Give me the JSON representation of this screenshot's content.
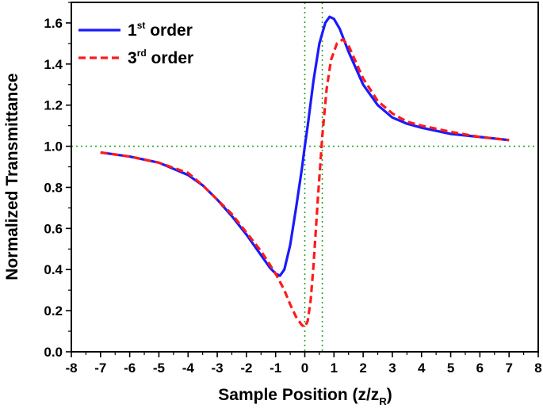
{
  "chart_data": {
    "type": "line",
    "title": "",
    "xlabel": "Sample Position (z/z",
    "xlabel_sub": "R",
    "xlabel_close": ")",
    "ylabel": "Normalized Transmittance",
    "xlim": [
      -8,
      8
    ],
    "ylim": [
      0.0,
      1.7
    ],
    "x_ticks": [
      "-8",
      "-7",
      "-6",
      "-5",
      "-4",
      "-3",
      "-2",
      "-1",
      "0",
      "1",
      "2",
      "3",
      "4",
      "5",
      "6",
      "7",
      "8"
    ],
    "y_ticks": [
      "0.0",
      "0.2",
      "0.4",
      "0.6",
      "0.8",
      "1.0",
      "1.2",
      "1.4",
      "1.6"
    ],
    "grid": false,
    "legend_position": "top-left",
    "series": [
      {
        "name_main": "1",
        "name_sup": "st",
        "name_rest": " order",
        "color": "#1a1aff",
        "style": "solid",
        "x": [
          -7,
          -6,
          -5,
          -4,
          -3.5,
          -3,
          -2.5,
          -2,
          -1.5,
          -1.2,
          -1,
          -0.85,
          -0.7,
          -0.5,
          -0.3,
          -0.1,
          0,
          0.1,
          0.3,
          0.5,
          0.7,
          0.85,
          1.0,
          1.2,
          1.5,
          2,
          2.5,
          3,
          3.5,
          4,
          5,
          6,
          7
        ],
        "y": [
          0.97,
          0.95,
          0.92,
          0.86,
          0.81,
          0.74,
          0.66,
          0.57,
          0.47,
          0.41,
          0.38,
          0.37,
          0.4,
          0.52,
          0.7,
          0.89,
          1.0,
          1.1,
          1.32,
          1.5,
          1.6,
          1.63,
          1.62,
          1.57,
          1.46,
          1.3,
          1.2,
          1.14,
          1.11,
          1.09,
          1.06,
          1.045,
          1.03
        ]
      },
      {
        "name_main": "3",
        "name_sup": "rd",
        "name_rest": " order",
        "color": "#ff1a1a",
        "style": "dashed",
        "x": [
          -7,
          -6,
          -5,
          -4,
          -3.5,
          -3,
          -2.5,
          -2,
          -1.5,
          -1,
          -0.7,
          -0.5,
          -0.3,
          -0.1,
          0,
          0.1,
          0.2,
          0.3,
          0.45,
          0.6,
          0.75,
          0.9,
          1.1,
          1.3,
          1.5,
          2,
          2.5,
          3,
          3.5,
          4,
          5,
          6,
          7
        ],
        "y": [
          0.97,
          0.95,
          0.92,
          0.87,
          0.81,
          0.74,
          0.67,
          0.58,
          0.49,
          0.38,
          0.3,
          0.23,
          0.17,
          0.13,
          0.12,
          0.15,
          0.25,
          0.42,
          0.75,
          1.05,
          1.28,
          1.42,
          1.5,
          1.52,
          1.49,
          1.33,
          1.22,
          1.16,
          1.12,
          1.1,
          1.07,
          1.045,
          1.03
        ]
      }
    ],
    "reference_lines": [
      {
        "orientation": "horizontal",
        "value": 1.0,
        "color": "#2ca02c",
        "style": "dotted"
      },
      {
        "orientation": "vertical",
        "value": 0.0,
        "color": "#2ca02c",
        "style": "dotted"
      },
      {
        "orientation": "vertical",
        "value": 0.6,
        "color": "#2ca02c",
        "style": "dotted"
      }
    ]
  }
}
